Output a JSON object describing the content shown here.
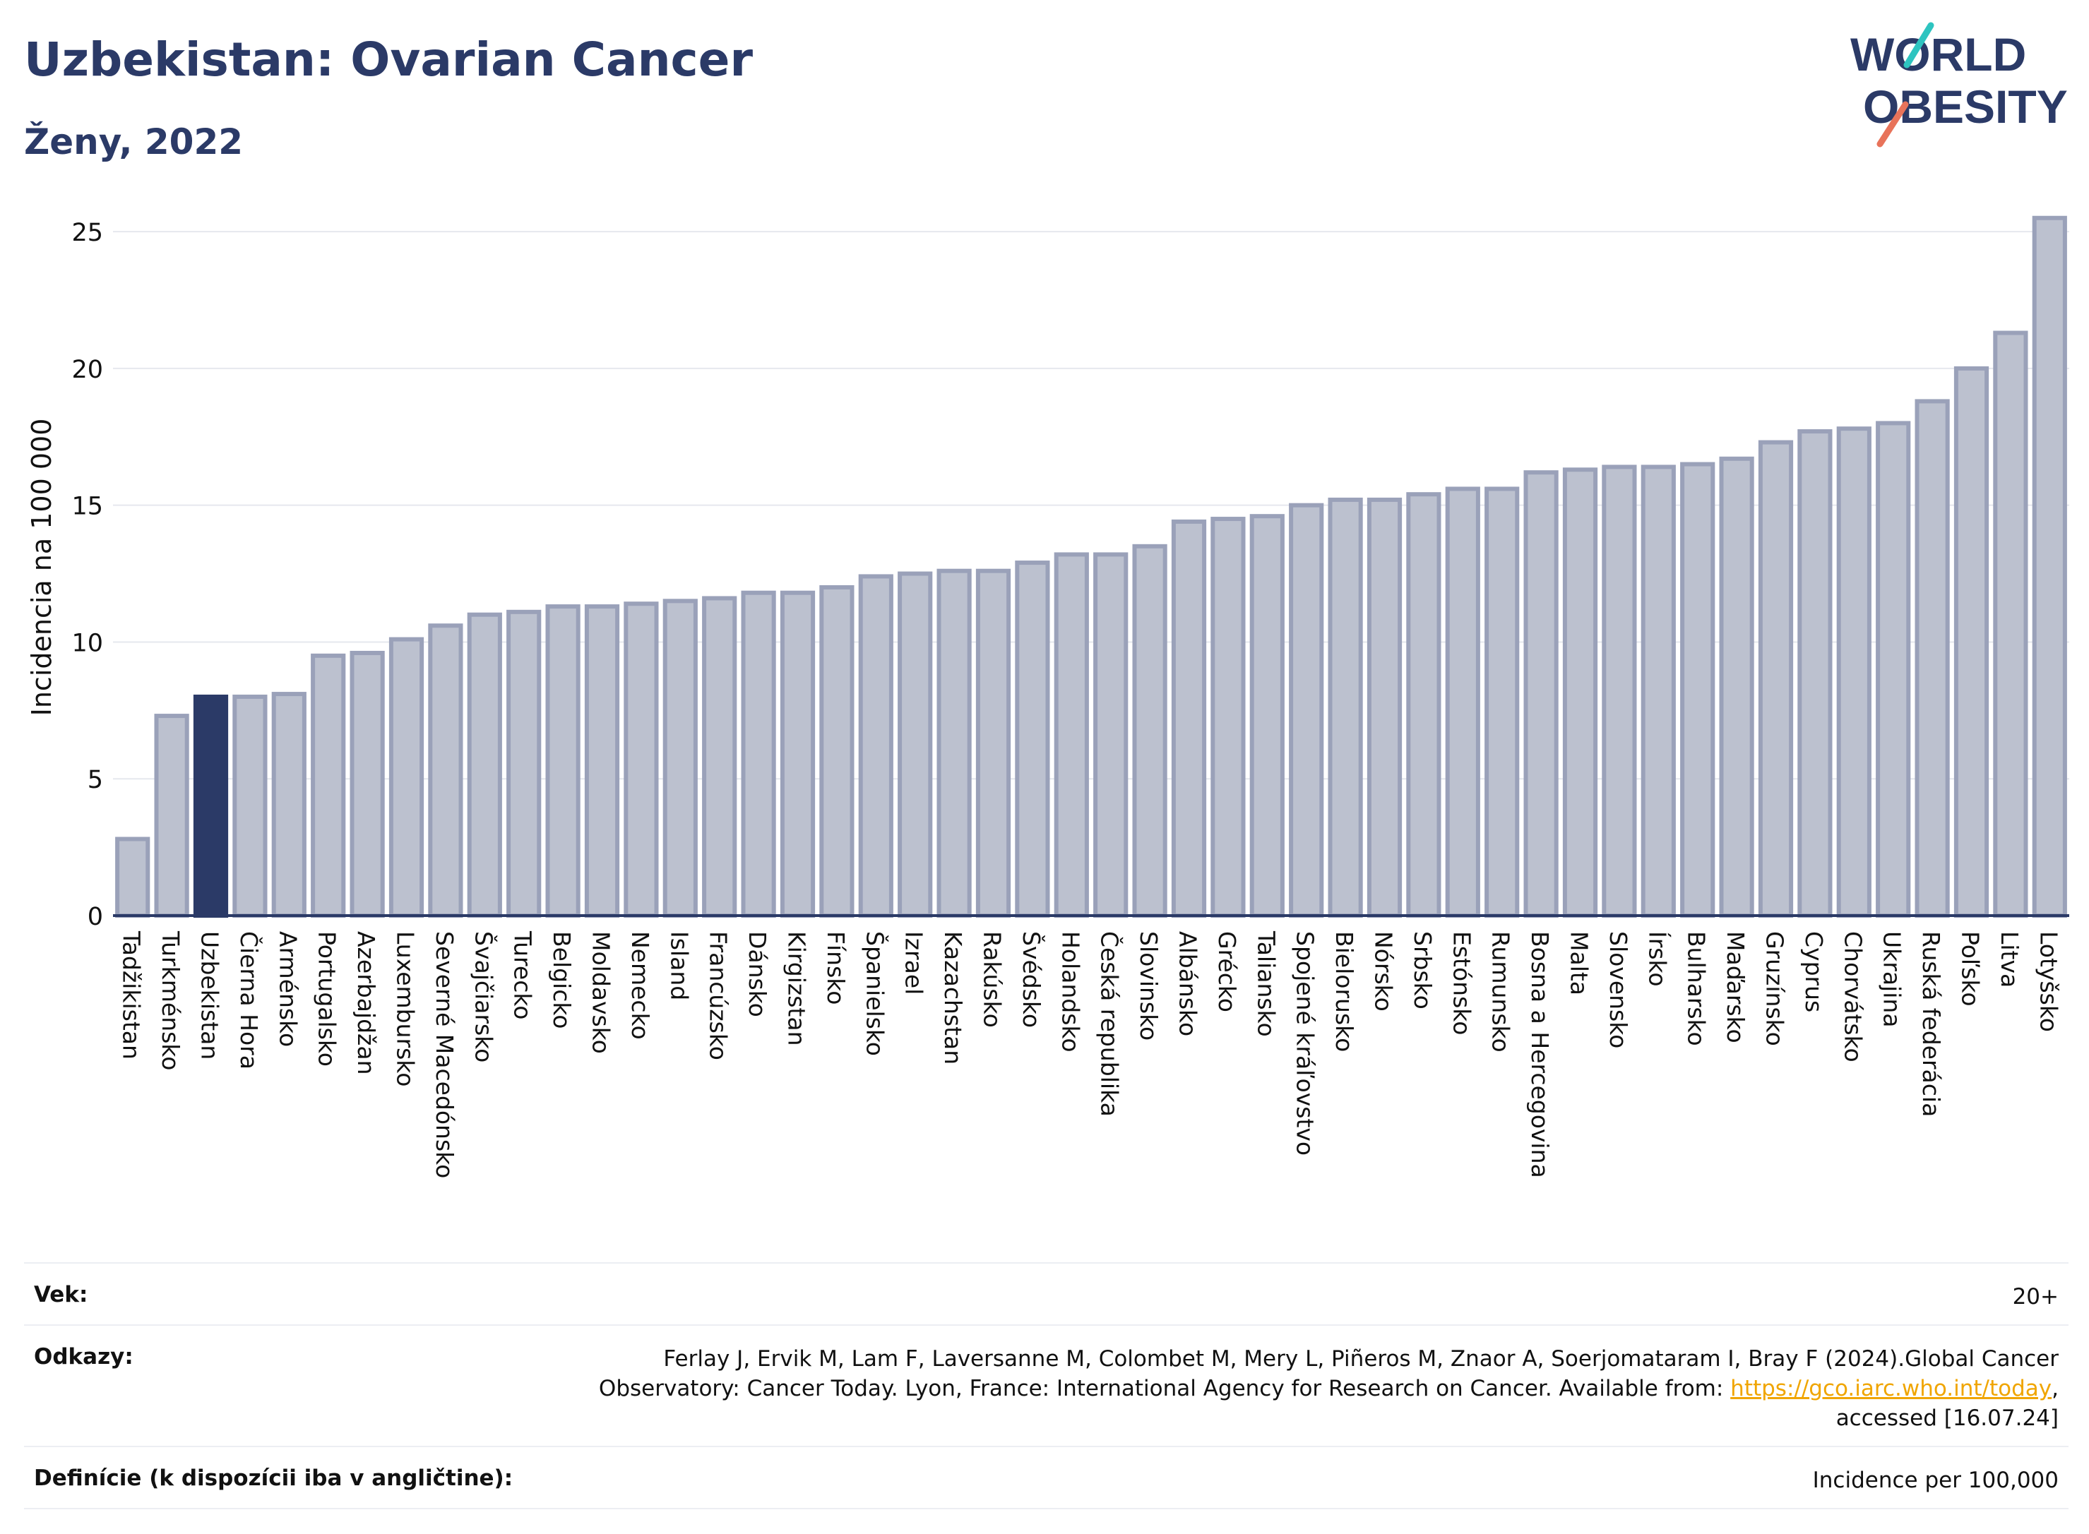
{
  "header": {
    "title": "Uzbekistan: Ovarian Cancer",
    "subtitle": "Ženy, 2022",
    "logo_line1": "WORLD",
    "logo_line2": "OBESITY"
  },
  "chart_data": {
    "type": "bar",
    "ylabel": "Incidencia na 100 000",
    "xlabel": "",
    "ylim": [
      0,
      26.5
    ],
    "yticks": [
      0,
      5,
      10,
      15,
      20,
      25
    ],
    "grid": true,
    "highlight": "Uzbekistan",
    "colors": {
      "bar": "#bcc1cf",
      "bar_border": "#9aa1b9",
      "highlight": "#2b3a67",
      "axis": "#2b3a67",
      "grid": "#e6e8ee"
    },
    "categories": [
      "Tadžikistan",
      "Turkménsko",
      "Uzbekistan",
      "Čierna Hora",
      "Arménsko",
      "Portugalsko",
      "Azerbajdžan",
      "Luxembursko",
      "Severné Macedónsko",
      "Švajčiarsko",
      "Turecko",
      "Belgicko",
      "Moldavsko",
      "Nemecko",
      "Island",
      "Francúzsko",
      "Dánsko",
      "Kirgizstan",
      "Fínsko",
      "Španielsko",
      "Izrael",
      "Kazachstan",
      "Rakúsko",
      "Švédsko",
      "Holandsko",
      "Česká republika",
      "Slovinsko",
      "Albánsko",
      "Grécko",
      "Taliansko",
      "Spojené kráľovstvo",
      "Bielorusko",
      "Nórsko",
      "Srbsko",
      "Estónsko",
      "Rumunsko",
      "Bosna a Hercegovina",
      "Malta",
      "Slovensko",
      "Írsko",
      "Bulharsko",
      "Maďarsko",
      "Gruzínsko",
      "Cyprus",
      "Chorvátsko",
      "Ukrajina",
      "Ruská federácia",
      "Poľsko",
      "Litva",
      "Lotyšsko"
    ],
    "values": [
      2.8,
      7.3,
      8.0,
      8.0,
      8.1,
      9.5,
      9.6,
      10.1,
      10.6,
      11.0,
      11.1,
      11.3,
      11.3,
      11.4,
      11.5,
      11.6,
      11.8,
      11.8,
      12.0,
      12.4,
      12.5,
      12.6,
      12.6,
      12.9,
      13.2,
      13.2,
      13.5,
      14.4,
      14.5,
      14.6,
      15.0,
      15.2,
      15.2,
      15.4,
      15.6,
      15.6,
      16.2,
      16.3,
      16.4,
      16.4,
      16.5,
      16.7,
      17.3,
      17.7,
      17.8,
      18.0,
      18.8,
      20.0,
      21.3,
      25.5
    ]
  },
  "meta": {
    "age_label": "Vek:",
    "age_value": "20+",
    "refs_label": "Odkazy:",
    "refs_text_1": "Ferlay J, Ervik M, Lam F, Laversanne M, Colombet M, Mery L, Piñeros M, Znaor A, Soerjomataram I, Bray F (2024).Global Cancer",
    "refs_text_2": "Observatory: Cancer Today. Lyon, France: International Agency for Research on Cancer. Available from: ",
    "refs_link": "https://gco.iarc.who.int/today",
    "refs_text_3": ",",
    "refs_text_4": "accessed [16.07.24]",
    "def_label": "Definície (k dispozícii iba v angličtine):",
    "def_value": "Incidence per 100,000"
  }
}
